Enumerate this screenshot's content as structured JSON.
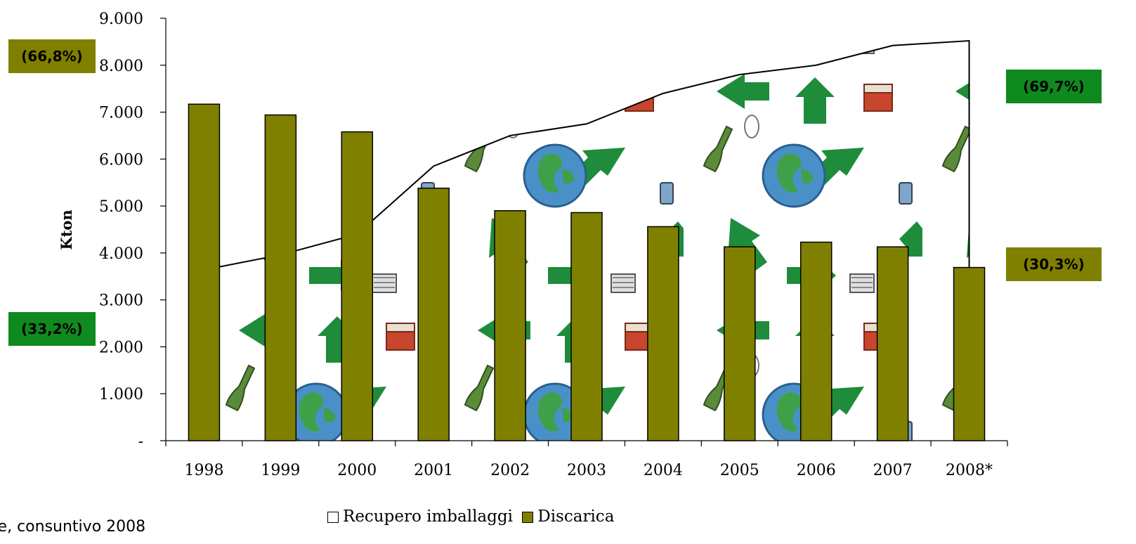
{
  "chart_data": {
    "type": "bar",
    "ylabel": "Kton",
    "y_tick_labels": [
      "-",
      "1.000",
      "2.000",
      "3.000",
      "4.000",
      "5.000",
      "6.000",
      "7.000",
      "8.000",
      "9.000"
    ],
    "ylim": [
      0,
      9000
    ],
    "categories": [
      "1998",
      "1999",
      "2000",
      "2001",
      "2002",
      "2003",
      "2004",
      "2005",
      "2006",
      "2007",
      "2008*"
    ],
    "series": [
      {
        "name": "Recupero imballaggi",
        "type": "area",
        "values": [
          3640,
          3960,
          4400,
          5850,
          6500,
          6750,
          7400,
          7800,
          8000,
          8420,
          8520
        ]
      },
      {
        "name": "Discarica",
        "type": "bar",
        "color": "#808000",
        "values": [
          7170,
          6940,
          6580,
          5380,
          4900,
          4860,
          4560,
          4130,
          4230,
          4130,
          3690
        ]
      }
    ],
    "annotations": [
      "(66,8%)",
      "(33,2%)",
      "(69,7%)",
      "(30,3%)"
    ],
    "grid": false,
    "legend_position": "bottom"
  },
  "colors": {
    "olive": "#808000",
    "green": "#0e8a1e",
    "arrow_green": "#1e8c3a",
    "earth_blue": "#4a90c8"
  },
  "footnote": "re, consuntivo 2008"
}
